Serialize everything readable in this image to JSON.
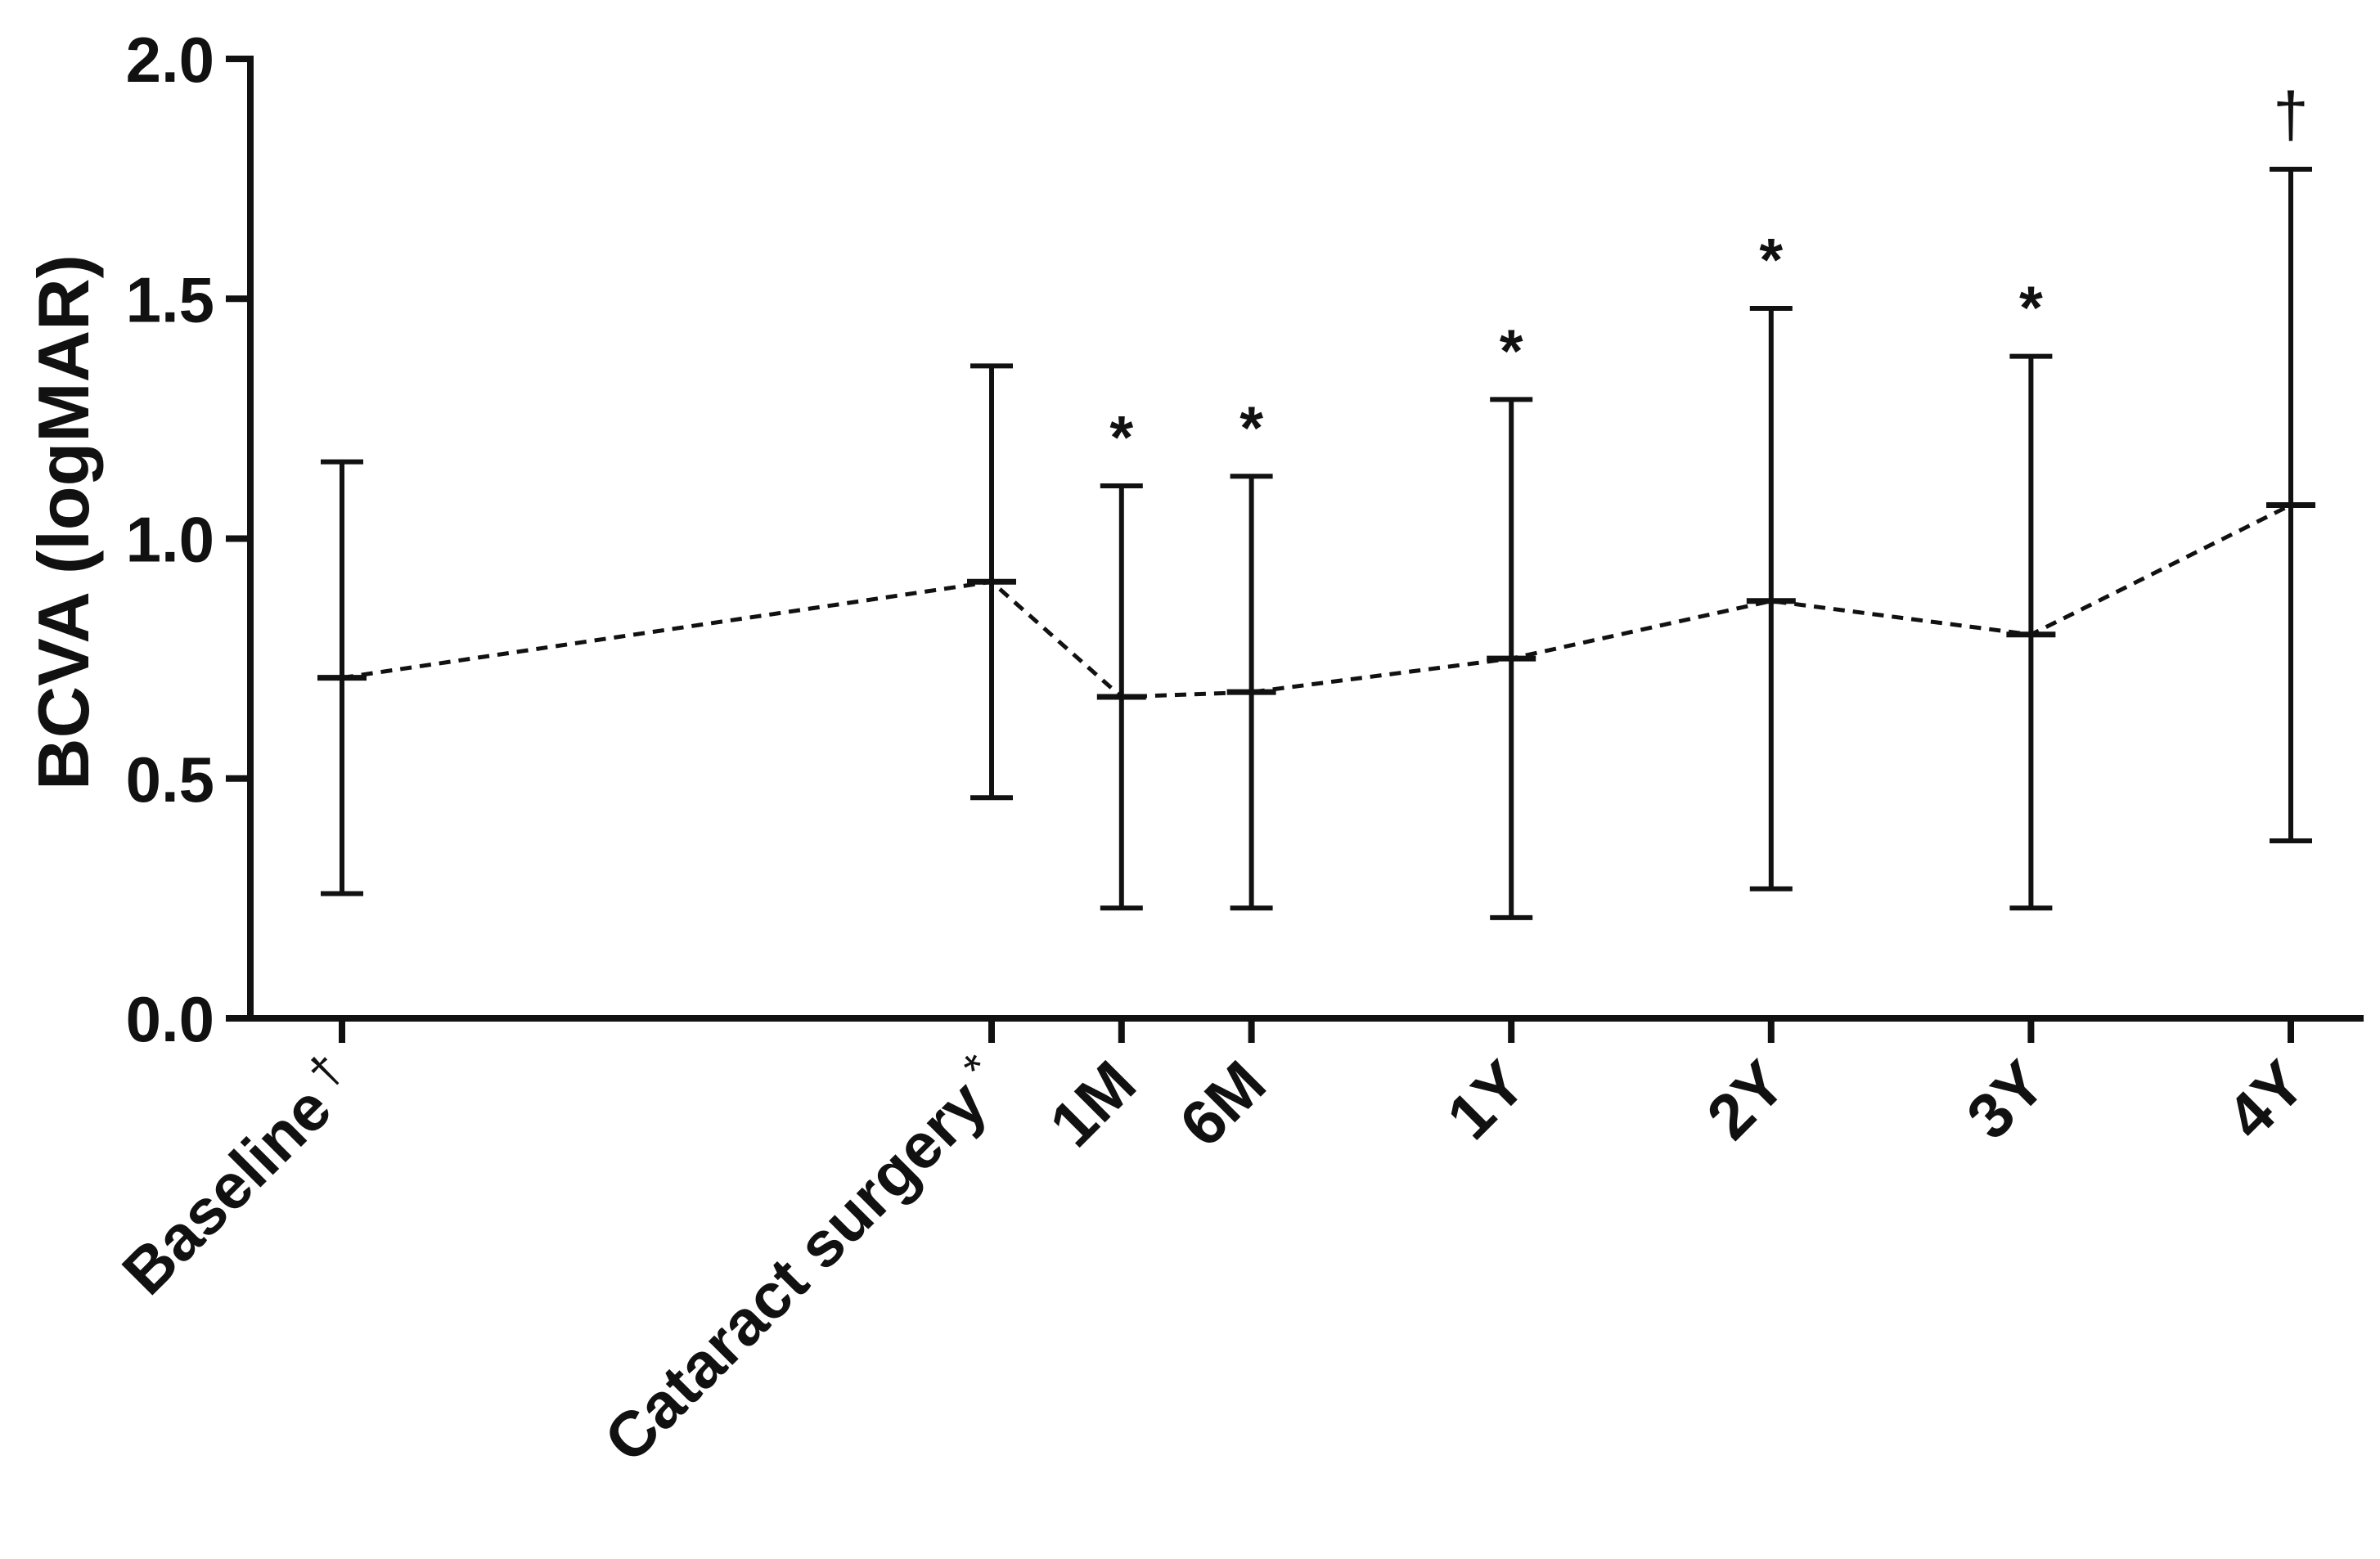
{
  "chart_data": {
    "type": "line",
    "title": "",
    "xlabel": "",
    "ylabel": "BCVA  (logMAR)",
    "ylim": [
      0,
      2.0
    ],
    "yticks": [
      "0.0",
      "0.5",
      "1.0",
      "1.5",
      "2.0"
    ],
    "ytick_values": [
      0,
      0.5,
      1.0,
      1.5,
      2.0
    ],
    "grid": false,
    "categories": [
      "Baseline",
      "Cataract surgery",
      "1M",
      "6M",
      "1Y",
      "2Y",
      "3Y",
      "4Y"
    ],
    "x_months": [
      -30,
      0,
      6,
      12,
      24,
      36,
      48,
      60
    ],
    "category_markers": [
      "†",
      "*",
      "",
      "",
      "",
      "",
      "",
      ""
    ],
    "series": [
      {
        "values": [
          0.71,
          0.91,
          0.67,
          0.68,
          0.75,
          0.87,
          0.8,
          1.07
        ],
        "error_low": [
          0.26,
          0.46,
          0.23,
          0.23,
          0.21,
          0.27,
          0.23,
          0.37
        ],
        "error_high": [
          1.16,
          1.36,
          1.11,
          1.13,
          1.29,
          1.48,
          1.38,
          1.77
        ],
        "line_style": "dashed"
      }
    ],
    "annotations": [
      "",
      "",
      "*",
      "*",
      "*",
      "*",
      "*",
      "†"
    ]
  }
}
